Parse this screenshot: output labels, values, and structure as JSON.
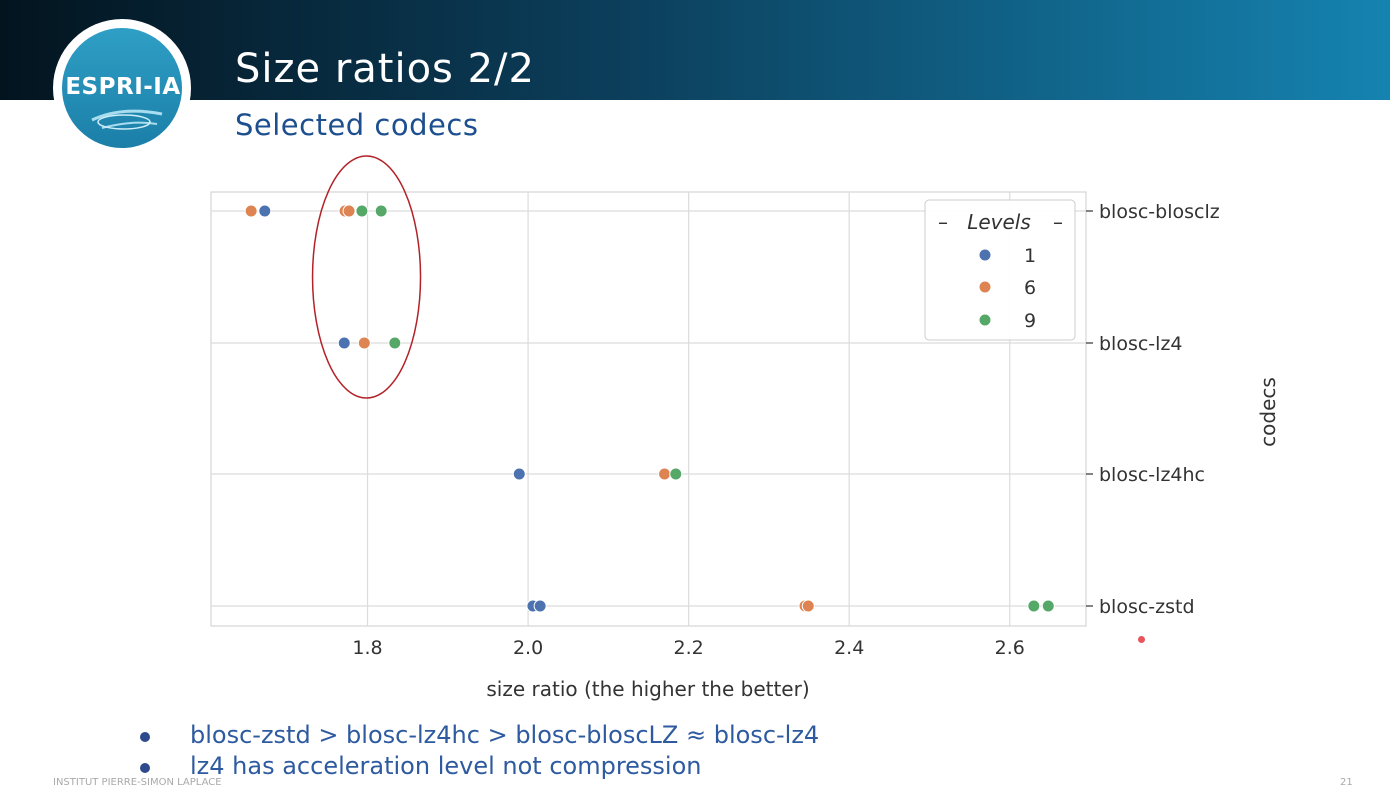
{
  "slide": {
    "logo_text": "ESPRI-IA",
    "title": "Size ratios 2/2",
    "subtitle": "Selected codecs",
    "bullets": [
      "blosc-zstd > blosc-lz4hc > blosc-bloscLZ ≈ blosc-lz4",
      "lz4 has acceleration level not compression"
    ],
    "footer_left": "INSTITUT PIERRE-SIMON LAPLACE",
    "page_number": "21"
  },
  "colors": {
    "level_1": "#4c72b0",
    "level_6": "#dd8452",
    "level_9": "#55a868",
    "highlight_ellipse": "#b22228",
    "header_dark": "#03141f",
    "header_light": "#1583b0"
  },
  "chart_data": {
    "type": "scatter",
    "xlabel": "size ratio (the higher the better)",
    "ylabel": "codecs",
    "xlim": [
      1.605,
      2.695
    ],
    "x_ticks": [
      1.8,
      2.0,
      2.2,
      2.4,
      2.6
    ],
    "x_tick_labels": [
      "1.8",
      "2.0",
      "2.2",
      "2.4",
      "2.6"
    ],
    "categories": [
      "blosc-blosclz",
      "blosc-lz4",
      "blosc-lz4hc",
      "blosc-zstd"
    ],
    "legend": {
      "title": "Levels",
      "placement": "top-right",
      "entries": [
        "1",
        "6",
        "9"
      ]
    },
    "grid": true,
    "series": [
      {
        "name": "1",
        "points": [
          {
            "category": "blosc-blosclz",
            "x": 1.672
          },
          {
            "category": "blosc-lz4",
            "x": 1.771
          },
          {
            "category": "blosc-lz4hc",
            "x": 1.989
          },
          {
            "category": "blosc-zstd",
            "x": 2.006
          },
          {
            "category": "blosc-zstd",
            "x": 2.015
          }
        ]
      },
      {
        "name": "6",
        "points": [
          {
            "category": "blosc-blosclz",
            "x": 1.655
          },
          {
            "category": "blosc-blosclz",
            "x": 1.772
          },
          {
            "category": "blosc-blosclz",
            "x": 1.777
          },
          {
            "category": "blosc-lz4",
            "x": 1.796
          },
          {
            "category": "blosc-lz4hc",
            "x": 2.17
          },
          {
            "category": "blosc-zstd",
            "x": 2.345
          },
          {
            "category": "blosc-zstd",
            "x": 2.349
          }
        ]
      },
      {
        "name": "9",
        "points": [
          {
            "category": "blosc-blosclz",
            "x": 1.793
          },
          {
            "category": "blosc-blosclz",
            "x": 1.817
          },
          {
            "category": "blosc-lz4",
            "x": 1.834
          },
          {
            "category": "blosc-lz4hc",
            "x": 2.184
          },
          {
            "category": "blosc-zstd",
            "x": 2.63
          },
          {
            "category": "blosc-zstd",
            "x": 2.648
          }
        ]
      }
    ],
    "highlight": {
      "shape": "ellipse",
      "x_center": 1.8,
      "categories": [
        "blosc-blosclz",
        "blosc-lz4"
      ]
    }
  }
}
